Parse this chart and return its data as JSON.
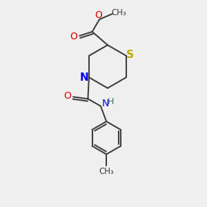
{
  "background_color": "#efefef",
  "atom_colors": {
    "C": "#3d3d3d",
    "N": "#0000ee",
    "O": "#dd0000",
    "S": "#bbaa00",
    "H": "#3d7070"
  },
  "bond_color": "#3d3d3d",
  "bond_width": 1.5,
  "fig_size": [
    3.0,
    3.0
  ],
  "dpi": 100
}
